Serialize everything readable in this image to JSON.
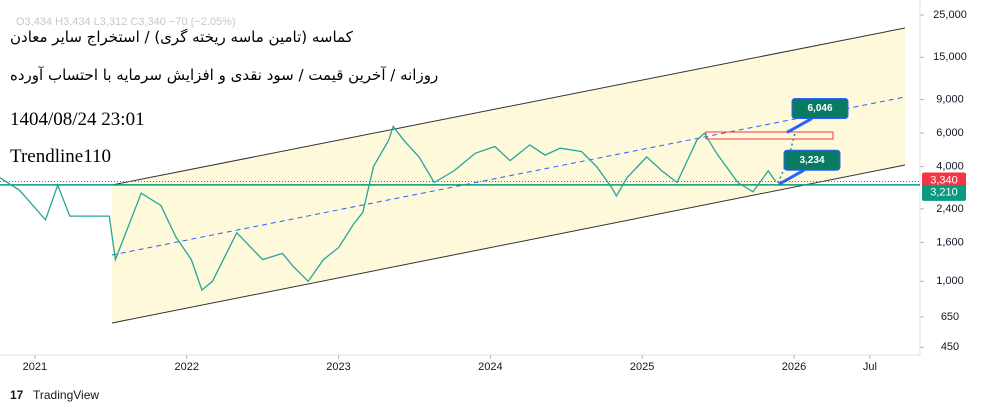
{
  "chart_data": {
    "type": "line",
    "legend_text": "O3,434 H3,434 L3,312 C3,340 −70 (−2.05%)",
    "title": "کماسه (تامین ماسه ریخته گری) / استخراج سایر معادن",
    "subtitle": "روزانه / آخرین قیمت / سود نقدی و افزایش سرمایه با احتساب آورده",
    "timestamp": "1404/08/24 23:01",
    "author": "Trendline110",
    "source": "TradingView",
    "log_scale": true,
    "grid": false,
    "xlim": [
      2020.77,
      2026.83
    ],
    "xticks": [
      2021,
      2022,
      2023,
      2024,
      2025,
      2026,
      {
        "value": 2026.5,
        "label": "Jul"
      }
    ],
    "ylim": [
      410,
      30000
    ],
    "yticks": [
      450,
      650,
      {
        "value": 1000,
        "label": "1,000"
      },
      {
        "value": 1600,
        "label": "1,600"
      },
      {
        "value": 2400,
        "label": "2,400"
      },
      {
        "value": 4000,
        "label": "4,000"
      },
      {
        "value": 6000,
        "label": "6,000"
      },
      {
        "value": 9000,
        "label": "9,000"
      },
      {
        "value": 15000,
        "label": "15,000"
      },
      {
        "value": 25000,
        "label": "25,000"
      }
    ],
    "x": [
      2020.77,
      2020.9,
      2021.07,
      2021.15,
      2021.23,
      2021.49,
      2021.53,
      2021.7,
      2021.83,
      2021.93,
      2022.03,
      2022.1,
      2022.17,
      2022.33,
      2022.5,
      2022.63,
      2022.7,
      2022.8,
      2022.9,
      2023.0,
      2023.1,
      2023.16,
      2023.23,
      2023.33,
      2023.36,
      2023.43,
      2023.53,
      2023.63,
      2023.76,
      2023.9,
      2024.03,
      2024.13,
      2024.26,
      2024.36,
      2024.46,
      2024.6,
      2024.7,
      2024.8,
      2024.83,
      2024.9,
      2025.03,
      2025.13,
      2025.23,
      2025.36,
      2025.41,
      2025.49,
      2025.63,
      2025.73,
      2025.83,
      2025.88
    ],
    "series": [
      {
        "name": "کماسه",
        "color": "#26a69a",
        "values": [
          3500,
          3000,
          2100,
          3200,
          2200,
          2200,
          1300,
          2900,
          2500,
          1700,
          1300,
          900,
          1000,
          1800,
          1300,
          1400,
          1200,
          1000,
          1300,
          1500,
          2000,
          2300,
          4000,
          5500,
          6500,
          5500,
          4500,
          3300,
          3800,
          4700,
          5100,
          4300,
          5200,
          4600,
          5000,
          4800,
          4000,
          3100,
          2800,
          3500,
          4500,
          3800,
          3300,
          5500,
          6000,
          4700,
          3300,
          2950,
          3800,
          3340
        ]
      }
    ],
    "price_labels": [
      {
        "value": 3340,
        "label": "3,340",
        "color": "#f23645"
      },
      {
        "value": 3210,
        "label": "3,210",
        "color": "#089981"
      }
    ],
    "annotations": [
      {
        "value": 6046,
        "label": "6,046"
      },
      {
        "value": 3234,
        "label": "3,234"
      }
    ]
  }
}
